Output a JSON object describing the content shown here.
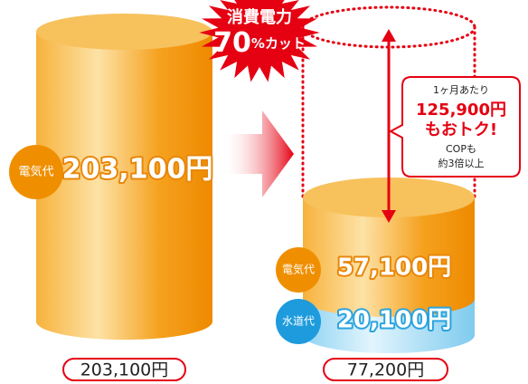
{
  "burst": {
    "line1": "消費電力",
    "number": "70",
    "suffix": "%カット"
  },
  "before": {
    "label": "電気代",
    "amount": "203,100円",
    "total": "203,100円"
  },
  "after": {
    "electricity": {
      "label": "電気代",
      "amount": "57,100円"
    },
    "water": {
      "label": "水道代",
      "amount": "20,100円"
    },
    "total": "77,200円"
  },
  "callout": {
    "line1": "1ヶ月あたり",
    "savings": "125,900円",
    "line2": "もおトク!",
    "line3": "COPも",
    "line4": "約3倍以上"
  }
}
